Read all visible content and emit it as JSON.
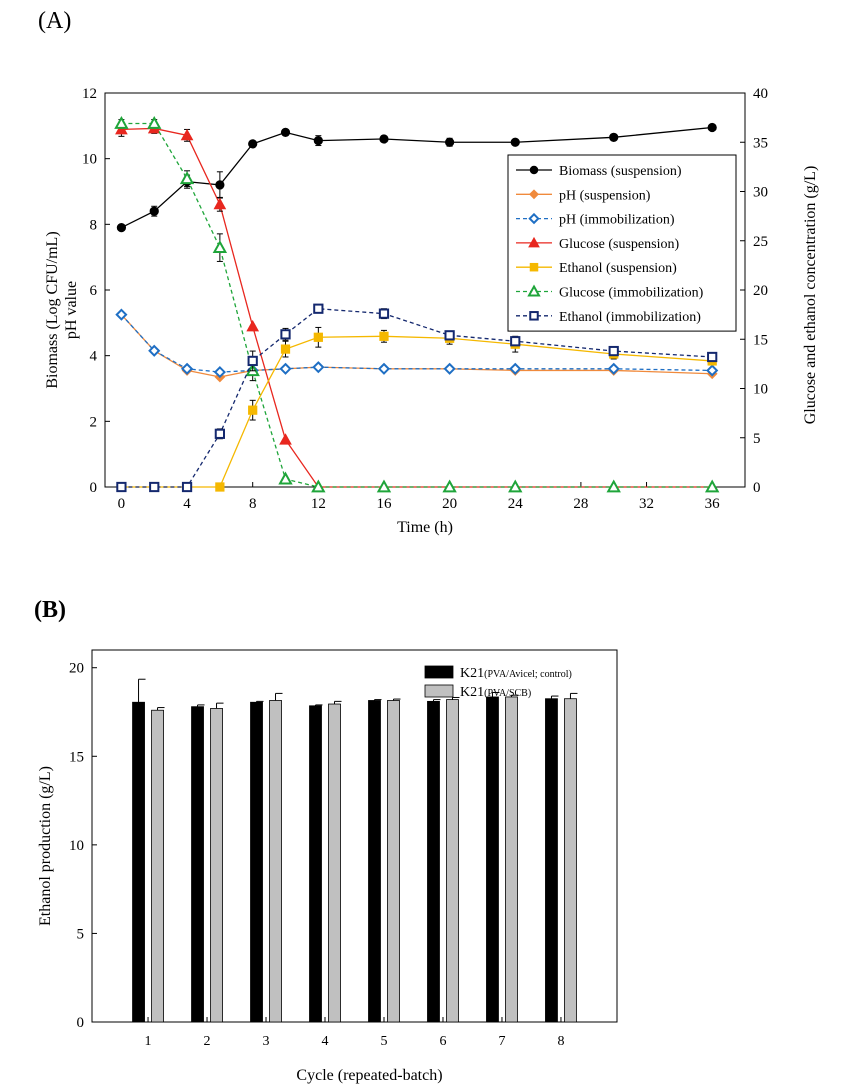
{
  "panels": {
    "a_label": "(A)",
    "b_label": "(B)"
  },
  "chart_data": [
    {
      "type": "line",
      "xlabel": "Time (h)",
      "ylabel_left": "Biomass (Log CFU/mL)",
      "ylabel_left2": "pH value",
      "ylabel_right": "Glucose and ethanol concentration (g/L)",
      "xlim": [
        -1,
        38
      ],
      "xticks": [
        0,
        4,
        8,
        12,
        16,
        20,
        24,
        28,
        32,
        36
      ],
      "ylim_left": [
        0,
        12
      ],
      "yticks_left": [
        0,
        2,
        4,
        6,
        8,
        10,
        12
      ],
      "ylim_right": [
        0,
        40
      ],
      "yticks_right": [
        0,
        5,
        10,
        15,
        20,
        25,
        30,
        35,
        40
      ],
      "legend_position": "center-right",
      "series": [
        {
          "name": "Biomass (suspension)",
          "axis": "left",
          "color": "#000000",
          "dash": false,
          "marker": "circle",
          "filled": true,
          "x": [
            0,
            2,
            4,
            6,
            8,
            10,
            12,
            16,
            20,
            24,
            30,
            36
          ],
          "y": [
            7.9,
            8.4,
            9.3,
            9.2,
            10.45,
            10.8,
            10.55,
            10.6,
            10.5,
            10.5,
            10.65,
            10.95
          ],
          "err": [
            0,
            0.15,
            0.2,
            0.4,
            0,
            0,
            0.15,
            0,
            0.12,
            0,
            0,
            0
          ]
        },
        {
          "name": "pH (suspension)",
          "axis": "left",
          "color": "#f08a3c",
          "dash": false,
          "marker": "diamond",
          "filled": true,
          "x": [
            0,
            2,
            4,
            6,
            8,
            10,
            12,
            16,
            20,
            24,
            30,
            36
          ],
          "y": [
            5.25,
            4.15,
            3.55,
            3.35,
            3.55,
            3.6,
            3.65,
            3.6,
            3.6,
            3.55,
            3.55,
            3.45
          ],
          "err": [
            0,
            0,
            0,
            0,
            0,
            0,
            0,
            0,
            0,
            0,
            0,
            0
          ]
        },
        {
          "name": "pH (immobilization)",
          "axis": "left",
          "color": "#1f6fc4",
          "dash": true,
          "marker": "diamond",
          "filled": false,
          "x": [
            0,
            2,
            4,
            6,
            8,
            10,
            12,
            16,
            20,
            24,
            30,
            36
          ],
          "y": [
            5.25,
            4.15,
            3.6,
            3.5,
            3.55,
            3.6,
            3.65,
            3.6,
            3.6,
            3.6,
            3.6,
            3.55
          ],
          "err": [
            0,
            0,
            0,
            0,
            0,
            0,
            0,
            0,
            0,
            0,
            0,
            0
          ]
        },
        {
          "name": "Glucose (suspension)",
          "axis": "right",
          "color": "#e8271f",
          "dash": false,
          "marker": "triangle",
          "filled": true,
          "x": [
            0,
            2,
            4,
            6,
            8,
            10,
            12,
            16,
            20,
            24,
            30,
            36
          ],
          "y": [
            36.3,
            36.4,
            35.7,
            28.7,
            16.3,
            4.8,
            0,
            0,
            0,
            0,
            0,
            0
          ],
          "err": [
            0.7,
            0.5,
            0.6,
            0.7,
            0,
            0,
            0,
            0,
            0,
            0,
            0,
            0
          ]
        },
        {
          "name": "Ethanol (suspension)",
          "axis": "right",
          "color": "#f5b800",
          "dash": false,
          "marker": "square",
          "filled": true,
          "x": [
            0,
            2,
            4,
            6,
            8,
            10,
            12,
            16,
            20,
            24,
            30,
            36
          ],
          "y": [
            0,
            0,
            0,
            0,
            7.8,
            14,
            15.2,
            15.3,
            15.1,
            14.5,
            13.5,
            12.8
          ],
          "err": [
            0,
            0,
            0,
            0,
            1.0,
            0.8,
            1.0,
            0.6,
            0.6,
            0.8,
            0.5,
            0.3
          ]
        },
        {
          "name": "Glucose (immobilization)",
          "axis": "right",
          "color": "#1fa53a",
          "dash": true,
          "marker": "triangle",
          "filled": false,
          "x": [
            0,
            2,
            4,
            6,
            8,
            10,
            12,
            16,
            20,
            24,
            30,
            36
          ],
          "y": [
            36.9,
            36.9,
            31.3,
            24.3,
            11.8,
            0.8,
            0,
            0,
            0,
            0,
            0,
            0
          ],
          "err": [
            0.4,
            0.4,
            0.8,
            1.4,
            1.0,
            0,
            0,
            0,
            0,
            0,
            0,
            0
          ]
        },
        {
          "name": "Ethanol (immobilization)",
          "axis": "right",
          "color": "#14286e",
          "dash": true,
          "marker": "square",
          "filled": false,
          "x": [
            0,
            2,
            4,
            6,
            8,
            10,
            12,
            16,
            20,
            24,
            30,
            36
          ],
          "y": [
            0,
            0,
            0,
            5.4,
            12.8,
            15.5,
            18.1,
            17.6,
            15.4,
            14.8,
            13.8,
            13.2
          ],
          "err": [
            0,
            0,
            0,
            0.5,
            1.0,
            0.6,
            0.3,
            0.5,
            0.4,
            0.4,
            0.3,
            0.3
          ]
        }
      ]
    },
    {
      "type": "bar",
      "xlabel": "Cycle (repeated-batch)",
      "ylabel": "Ethanol production (g/L)",
      "categories": [
        "1",
        "2",
        "3",
        "4",
        "5",
        "6",
        "7",
        "8"
      ],
      "ylim": [
        0,
        21
      ],
      "yticks": [
        0,
        5,
        10,
        15,
        20
      ],
      "legend_position": "top-right",
      "series": [
        {
          "name": "K21",
          "name_sub": "(PVA/Avicel; control)",
          "color": "#000000",
          "values": [
            18.05,
            17.8,
            18.05,
            17.85,
            18.15,
            18.1,
            18.35,
            18.25
          ],
          "err": [
            1.3,
            0.1,
            0.05,
            0.05,
            0.05,
            0.1,
            0.25,
            0.15
          ]
        },
        {
          "name": "K21",
          "name_sub": "(PVA/SCB)",
          "color": "#c0c0c0",
          "values": [
            17.6,
            17.7,
            18.15,
            17.95,
            18.15,
            18.2,
            18.35,
            18.25
          ],
          "err": [
            0.15,
            0.3,
            0.4,
            0.15,
            0.08,
            0.12,
            0.1,
            0.3
          ]
        }
      ]
    }
  ]
}
